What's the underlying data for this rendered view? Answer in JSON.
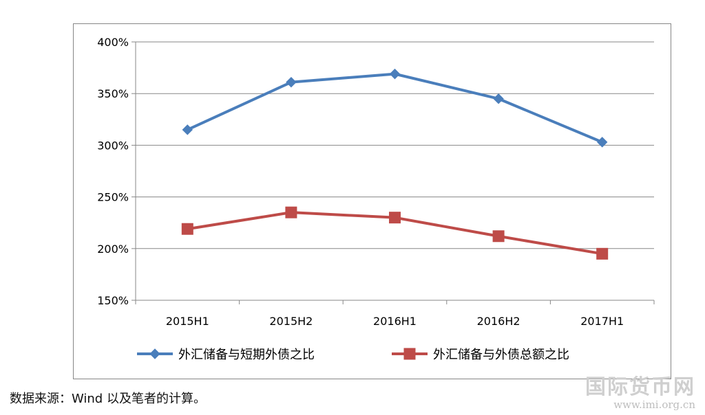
{
  "figure": {
    "title": "",
    "source_note": "数据来源：Wind 以及笔者的计算。",
    "watermark_title": "国际货币网",
    "watermark_url": "www.imi.org.cn"
  },
  "chart_data": {
    "type": "line",
    "categories": [
      "2015H1",
      "2015H2",
      "2016H1",
      "2016H2",
      "2017H1"
    ],
    "series": [
      {
        "name": "外汇储备与短期外债之比",
        "values": [
          315,
          361,
          369,
          345,
          303
        ],
        "color": "#4a7ebb",
        "marker": "diamond"
      },
      {
        "name": "外汇储备与外债总额之比",
        "values": [
          219,
          235,
          230,
          212,
          195
        ],
        "color": "#be4b48",
        "marker": "square"
      }
    ],
    "ylim": [
      150,
      400
    ],
    "y_ticks": [
      "150%",
      "200%",
      "250%",
      "300%",
      "350%",
      "400%"
    ],
    "y_tick_values": [
      150,
      200,
      250,
      300,
      350,
      400
    ],
    "unit": "%",
    "grid": true,
    "legend_position": "bottom",
    "xlabel": "",
    "ylabel": ""
  }
}
